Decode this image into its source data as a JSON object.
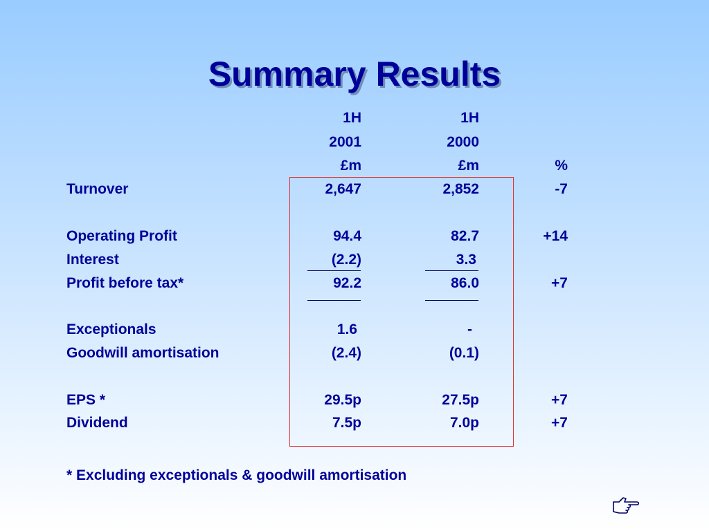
{
  "title": "Summary Results",
  "header": {
    "period": [
      "1H",
      "1H"
    ],
    "year": [
      "2001",
      "2000"
    ],
    "unit": [
      "£m",
      "£m",
      "%"
    ]
  },
  "rows": [
    {
      "label": "Turnover",
      "v2001": "2,647",
      "v2000": "2,852",
      "pct": "-7"
    },
    {
      "label": "Operating Profit",
      "v2001": "94.4",
      "v2000": "82.7",
      "pct": "+14"
    },
    {
      "label": "Interest",
      "v2001": "(2.2)",
      "v2000": "3.3",
      "pct": ""
    },
    {
      "label": "Profit before tax*",
      "v2001": "92.2",
      "v2000": "86.0",
      "pct": "+7"
    },
    {
      "label": "Exceptionals",
      "v2001": "1.6",
      "v2000": "-",
      "pct": ""
    },
    {
      "label": "Goodwill amortisation",
      "v2001": "(2.4)",
      "v2000": "(0.1)",
      "pct": ""
    },
    {
      "label": "EPS *",
      "v2001": "29.5p",
      "v2000": "27.5p",
      "pct": "+7"
    },
    {
      "label": "Dividend",
      "v2001": "7.5p",
      "v2000": "7.0p",
      "pct": "+7"
    }
  ],
  "footnote": "* Excluding exceptionals & goodwill amortisation",
  "icons": {
    "corner": "pointing-hand-icon"
  },
  "colors": {
    "text": "#000099",
    "box": "#e0303a"
  }
}
